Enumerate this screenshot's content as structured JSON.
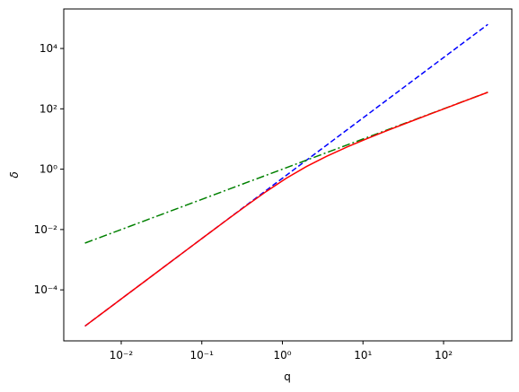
{
  "chart_data": {
    "type": "line",
    "x_label": "q",
    "y_label": "δ",
    "xlog": true,
    "ylog": true,
    "xlim": [
      0.001936,
      703
    ],
    "ylim": [
      2.04e-06,
      204000
    ],
    "xticks": [
      {
        "value": 0.01,
        "label": "10⁻²"
      },
      {
        "value": 0.1,
        "label": "10⁻¹"
      },
      {
        "value": 1,
        "label": "10⁰"
      },
      {
        "value": 10,
        "label": "10¹"
      },
      {
        "value": 100,
        "label": "10²"
      }
    ],
    "yticks": [
      {
        "value": 0.0001,
        "label": "10⁻⁴"
      },
      {
        "value": 0.01,
        "label": "10⁻²"
      },
      {
        "value": 1,
        "label": "10⁰"
      },
      {
        "value": 100,
        "label": "10²"
      },
      {
        "value": 10000,
        "label": "10⁴"
      }
    ],
    "x": [
      0.003548,
      0.00631,
      0.01122,
      0.01995,
      0.03548,
      0.0631,
      0.1122,
      0.1995,
      0.3548,
      0.631,
      1.122,
      1.995,
      3.548,
      6.31,
      11.22,
      19.95,
      35.48,
      63.1,
      112.2,
      199.5,
      354.8
    ],
    "series": [
      {
        "color": "#ff0000",
        "dash": "solid",
        "values": [
          6.29e-06,
          1.99e-05,
          6.29e-05,
          0.000199,
          0.000629,
          0.00199,
          0.00629,
          0.01971,
          0.0611,
          0.1824,
          0.503,
          1.232,
          2.686,
          5.388,
          10.265,
          18.98,
          34.49,
          62.11,
          111.2,
          198.5,
          353.8
        ]
      },
      {
        "color": "#0000ff",
        "dash": "dashed",
        "values": [
          6.29e-06,
          1.99e-05,
          6.29e-05,
          0.000199,
          0.000629,
          0.00199,
          0.00629,
          0.0199,
          0.0629,
          0.199,
          0.629,
          1.99,
          6.29,
          19.9,
          62.9,
          199,
          629,
          1991,
          6295,
          19905,
          62946
        ]
      },
      {
        "color": "#008000",
        "dash": "dashdot",
        "values": [
          0.003548,
          0.00631,
          0.01122,
          0.01995,
          0.03548,
          0.0631,
          0.1122,
          0.1995,
          0.3548,
          0.631,
          1.122,
          1.995,
          3.548,
          6.31,
          11.22,
          19.95,
          35.48,
          63.1,
          112.2,
          199.5,
          354.8
        ]
      }
    ]
  }
}
